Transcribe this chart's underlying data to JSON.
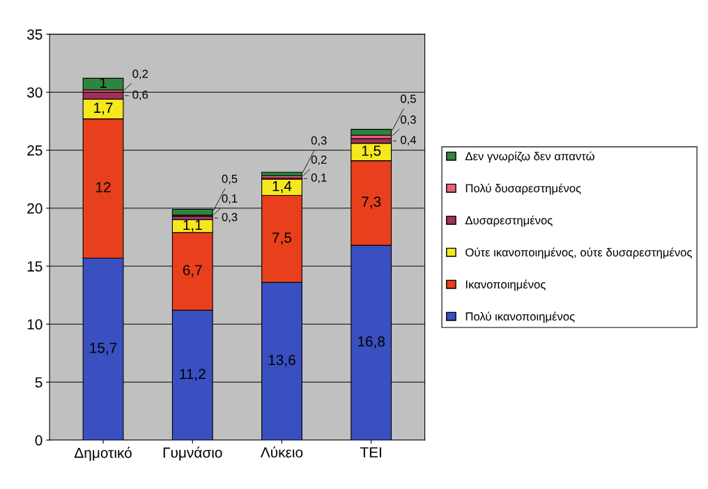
{
  "chart_data": {
    "type": "bar",
    "stacked": true,
    "categories": [
      "Δημοτικό",
      "Γυμνάσιο",
      "Λύκειο",
      "ΤΕΙ"
    ],
    "series": [
      {
        "name": "Πολύ ικανοποιημένος",
        "color": "#3a4fc0",
        "values": [
          15.7,
          11.2,
          13.6,
          16.8
        ],
        "value_labels": [
          "15,7",
          "11,2",
          "13,6",
          "16,8"
        ]
      },
      {
        "name": "Ικανοποιημένος",
        "color": "#e8401c",
        "values": [
          12,
          6.7,
          7.5,
          7.3
        ],
        "value_labels": [
          "12",
          "6,7",
          "7,5",
          "7,3"
        ]
      },
      {
        "name": "Ούτε ικανοποιημένος, ούτε δυσαρεστημένος",
        "color": "#f5e81e",
        "values": [
          1.7,
          1.1,
          1.4,
          1.5
        ],
        "value_labels": [
          "1,7",
          "1,1",
          "1,4",
          "1,5"
        ]
      },
      {
        "name": "Δυσαρεστημένος",
        "color": "#a0305a",
        "values": [
          0.6,
          0.3,
          0.1,
          0.4
        ],
        "value_labels": [
          "0,6",
          "0,3",
          "0,1",
          "0,4"
        ]
      },
      {
        "name": "Πολύ δυσαρεστημένος",
        "color": "#e8607a",
        "values": [
          0.2,
          0.1,
          0.2,
          0.3
        ],
        "value_labels": [
          "0,2",
          "0,1",
          "0,2",
          "0,3"
        ]
      },
      {
        "name": "Δεν γνωρίζω δεν απαντώ",
        "color": "#2e8540",
        "values": [
          1,
          0.5,
          0.3,
          0.5
        ],
        "value_labels": [
          "1",
          "0,5",
          "0,3",
          "0,5"
        ]
      }
    ],
    "ylim": [
      0,
      35
    ],
    "yticks": [
      0,
      5,
      10,
      15,
      20,
      25,
      30,
      35
    ],
    "grid": "y",
    "legend": "right"
  }
}
